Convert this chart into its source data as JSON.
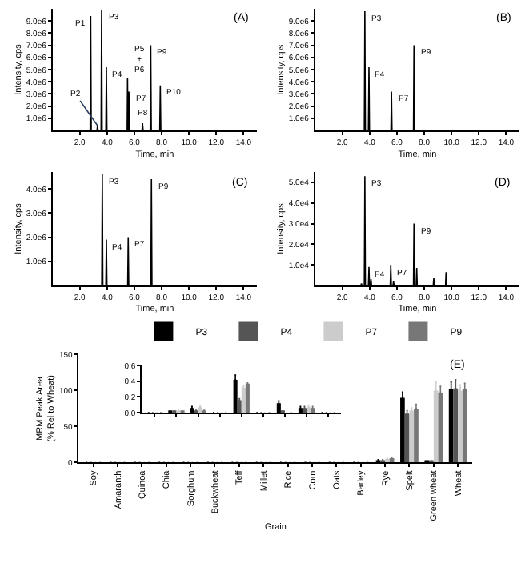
{
  "chart_data": [
    {
      "type": "line",
      "title": "(A)",
      "xlabel": "Time, min",
      "ylabel": "Intensity, cps",
      "marker": "none",
      "xlim": [
        0,
        15
      ],
      "xticks": [
        {
          "value": 2,
          "label": "2.0"
        },
        {
          "value": 4,
          "label": "4.0"
        },
        {
          "value": 6,
          "label": "6.0"
        },
        {
          "value": 8,
          "label": "8.0"
        },
        {
          "value": 10,
          "label": "10.0"
        },
        {
          "value": 12,
          "label": "12.0"
        },
        {
          "value": 14,
          "label": "14.0"
        }
      ],
      "ylim": [
        0,
        10000000
      ],
      "yticks": [
        {
          "value": 1000000,
          "label": "1.0e6"
        },
        {
          "value": 2000000,
          "label": "2.0e6"
        },
        {
          "value": 3000000,
          "label": "3.0e6"
        },
        {
          "value": 4000000,
          "label": "4.0e6"
        },
        {
          "value": 5000000,
          "label": "5.0e6"
        },
        {
          "value": 6000000,
          "label": "6.0e6"
        },
        {
          "value": 7000000,
          "label": "7.0e6"
        },
        {
          "value": 8000000,
          "label": "8.0e6"
        },
        {
          "value": 9000000,
          "label": "9.0e6"
        }
      ],
      "series": [
        {
          "color": "#000000",
          "x": [
            0,
            2.76,
            2.8,
            2.84,
            3.26,
            3.3,
            3.34,
            3.56,
            3.6,
            3.64,
            3.91,
            3.95,
            3.99,
            5.47,
            5.5,
            5.53,
            5.57,
            5.6,
            5.63,
            6.56,
            6.6,
            6.64,
            7.16,
            7.2,
            7.24,
            7.86,
            7.9,
            7.94,
            15
          ],
          "values": [
            0,
            0,
            9400000,
            0,
            0,
            400000,
            0,
            0,
            9900000,
            0,
            0,
            5200000,
            0,
            0,
            4300000,
            0,
            0,
            3200000,
            0,
            0,
            600000,
            0,
            0,
            7000000,
            0,
            0,
            3700000,
            0,
            0
          ]
        }
      ],
      "annotations": [
        {
          "text": "P1",
          "x": 2.8,
          "y": 9400000
        },
        {
          "text": "P2",
          "x": 3.3,
          "y": 400000
        },
        {
          "text": "P3",
          "x": 3.6,
          "y": 9900000
        },
        {
          "text": "P4",
          "x": 3.95,
          "y": 5200000
        },
        {
          "text": "P5\n+\nP6",
          "x": 5.5,
          "y": 4300000
        },
        {
          "text": "P7",
          "x": 5.6,
          "y": 3200000
        },
        {
          "text": "P8",
          "x": 6.6,
          "y": 600000
        },
        {
          "text": "P9",
          "x": 7.2,
          "y": 7000000
        },
        {
          "text": "P10",
          "x": 7.9,
          "y": 3700000
        }
      ]
    },
    {
      "type": "line",
      "title": "(B)",
      "xlabel": "Time, min",
      "ylabel": "Intensity, cps",
      "marker": "none",
      "xlim": [
        0,
        15
      ],
      "xticks": [
        {
          "value": 2,
          "label": "2.0"
        },
        {
          "value": 4,
          "label": "4.0"
        },
        {
          "value": 6,
          "label": "6.0"
        },
        {
          "value": 8,
          "label": "8.0"
        },
        {
          "value": 10,
          "label": "10.0"
        },
        {
          "value": 12,
          "label": "12.0"
        },
        {
          "value": 14,
          "label": "14.0"
        }
      ],
      "ylim": [
        0,
        10000000
      ],
      "yticks": [
        {
          "value": 1000000,
          "label": "1.0e6"
        },
        {
          "value": 2000000,
          "label": "2.0e6"
        },
        {
          "value": 3000000,
          "label": "3.0e6"
        },
        {
          "value": 4000000,
          "label": "4.0e6"
        },
        {
          "value": 5000000,
          "label": "5.0e6"
        },
        {
          "value": 6000000,
          "label": "6.0e6"
        },
        {
          "value": 7000000,
          "label": "7.0e6"
        },
        {
          "value": 8000000,
          "label": "8.0e6"
        },
        {
          "value": 9000000,
          "label": "9.0e6"
        }
      ],
      "series": [
        {
          "color": "#000000",
          "x": [
            0,
            3.61,
            3.65,
            3.69,
            3.91,
            3.95,
            3.99,
            5.56,
            5.6,
            5.64,
            7.21,
            7.25,
            7.29,
            15
          ],
          "values": [
            0,
            0,
            9800000,
            0,
            0,
            5200000,
            0,
            0,
            3200000,
            0,
            0,
            7000000,
            0,
            0
          ]
        }
      ],
      "annotations": [
        {
          "text": "P3",
          "x": 3.65,
          "y": 9800000
        },
        {
          "text": "P4",
          "x": 3.95,
          "y": 5200000
        },
        {
          "text": "P7",
          "x": 5.6,
          "y": 3200000
        },
        {
          "text": "P9",
          "x": 7.25,
          "y": 7000000
        }
      ]
    },
    {
      "type": "line",
      "title": "(C)",
      "xlabel": "Time, min",
      "ylabel": "Intensity, cps",
      "marker": "none",
      "xlim": [
        0,
        15
      ],
      "xticks": [
        {
          "value": 2,
          "label": "2.0"
        },
        {
          "value": 4,
          "label": "4.0"
        },
        {
          "value": 6,
          "label": "6.0"
        },
        {
          "value": 8,
          "label": "8.0"
        },
        {
          "value": 10,
          "label": "10.0"
        },
        {
          "value": 12,
          "label": "12.0"
        },
        {
          "value": 14,
          "label": "14.0"
        }
      ],
      "ylim": [
        0,
        4700000
      ],
      "yticks": [
        {
          "value": 1000000,
          "label": "1.0e6"
        },
        {
          "value": 2000000,
          "label": "2.0e6"
        },
        {
          "value": 3000000,
          "label": "3.0e6"
        },
        {
          "value": 4000000,
          "label": "4.0e6"
        }
      ],
      "series": [
        {
          "color": "#000000",
          "x": [
            0,
            3.61,
            3.65,
            3.69,
            3.91,
            3.95,
            3.99,
            5.51,
            5.55,
            5.59,
            7.21,
            7.25,
            7.29,
            15
          ],
          "values": [
            0,
            0,
            4600000,
            0,
            0,
            1900000,
            0,
            0,
            2000000,
            0,
            0,
            4400000,
            0,
            0
          ]
        }
      ],
      "annotations": [
        {
          "text": "P3",
          "x": 3.65,
          "y": 4600000
        },
        {
          "text": "P4",
          "x": 3.95,
          "y": 1900000
        },
        {
          "text": "P7",
          "x": 5.55,
          "y": 2000000
        },
        {
          "text": "P9",
          "x": 7.25,
          "y": 4400000
        }
      ]
    },
    {
      "type": "line",
      "title": "(D)",
      "xlabel": "Time, min",
      "ylabel": "Intensity, cps",
      "marker": "none",
      "xlim": [
        0,
        15
      ],
      "xticks": [
        {
          "value": 2,
          "label": "2.0"
        },
        {
          "value": 4,
          "label": "4.0"
        },
        {
          "value": 6,
          "label": "6.0"
        },
        {
          "value": 8,
          "label": "8.0"
        },
        {
          "value": 10,
          "label": "10.0"
        },
        {
          "value": 12,
          "label": "12.0"
        },
        {
          "value": 14,
          "label": "14.0"
        }
      ],
      "ylim": [
        0,
        55000
      ],
      "yticks": [
        {
          "value": 10000,
          "label": "1.0e4"
        },
        {
          "value": 20000,
          "label": "2.0e4"
        },
        {
          "value": 30000,
          "label": "3.0e4"
        },
        {
          "value": 40000,
          "label": "4.0e4"
        },
        {
          "value": 50000,
          "label": "5.0e4"
        }
      ],
      "series": [
        {
          "color": "#000000",
          "x": [
            0,
            3.36,
            3.4,
            3.44,
            3.61,
            3.65,
            3.69,
            3.91,
            3.95,
            3.99,
            4.06,
            4.1,
            4.14,
            5.51,
            5.55,
            5.59,
            5.71,
            5.75,
            5.79,
            7.21,
            7.25,
            7.29,
            7.41,
            7.45,
            7.49,
            8.66,
            8.7,
            8.74,
            9.56,
            9.6,
            9.64,
            15
          ],
          "values": [
            0,
            0,
            1000,
            0,
            0,
            53000,
            0,
            0,
            9000,
            0,
            0,
            3000,
            0,
            0,
            10000,
            0,
            0,
            2000,
            0,
            0,
            30000,
            0,
            0,
            8500,
            0,
            0,
            3500,
            0,
            0,
            6500,
            0,
            0
          ]
        }
      ],
      "annotations": [
        {
          "text": "P3",
          "x": 3.65,
          "y": 53000
        },
        {
          "text": "P4",
          "x": 3.95,
          "y": 9000
        },
        {
          "text": "P7",
          "x": 5.55,
          "y": 10000
        },
        {
          "text": "P9",
          "x": 7.25,
          "y": 30000
        }
      ]
    },
    {
      "type": "bar",
      "title": "(E)",
      "xlabel": "Grain",
      "ylabel": "MRM Peak Area\n(% Rel to Wheat)",
      "legend": "top right",
      "ylim": [
        0,
        150
      ],
      "yticks": [
        0,
        50,
        100,
        150
      ],
      "categories": [
        "Soy",
        "Amaranth",
        "Quinoa",
        "Chia",
        "Sorghum",
        "Buckwheat",
        "Teff",
        "Millet",
        "Rice",
        "Corn",
        "Oats",
        "Barley",
        "Rye",
        "Spelt",
        "Green wheat",
        "Wheat"
      ],
      "series": [
        {
          "name": "P3",
          "color": "#000000",
          "values": [
            0,
            0,
            0,
            0,
            0,
            0,
            0,
            0,
            0,
            0,
            0,
            0,
            3,
            90,
            2,
            102
          ],
          "errors": [
            null,
            null,
            null,
            null,
            null,
            null,
            null,
            null,
            null,
            null,
            null,
            null,
            1,
            8,
            null,
            10
          ]
        },
        {
          "name": "P4",
          "color": "#555555",
          "values": [
            0,
            0,
            0,
            0,
            0,
            0,
            0,
            0,
            0,
            0,
            0,
            0,
            3,
            68,
            2,
            103
          ],
          "errors": [
            null,
            null,
            null,
            null,
            null,
            null,
            null,
            null,
            null,
            null,
            null,
            null,
            1,
            4,
            null,
            12
          ]
        },
        {
          "name": "P7",
          "color": "#cccccc",
          "values": [
            0,
            0,
            0,
            0,
            0,
            0,
            0,
            0,
            0,
            0,
            0,
            0,
            5,
            72,
            100,
            100
          ],
          "errors": [
            null,
            null,
            null,
            null,
            null,
            null,
            null,
            null,
            null,
            null,
            null,
            null,
            1,
            4,
            12,
            8
          ]
        },
        {
          "name": "P9",
          "color": "#777777",
          "values": [
            0,
            0,
            0,
            0,
            0,
            0,
            0,
            0,
            0,
            0,
            0,
            0,
            6,
            75,
            97,
            102
          ],
          "errors": [
            null,
            null,
            null,
            null,
            null,
            null,
            null,
            null,
            null,
            null,
            null,
            null,
            1,
            6,
            9,
            8
          ]
        }
      ]
    },
    {
      "type": "bar",
      "ylim": [
        0,
        0.6
      ],
      "yticks": [
        {
          "value": 0,
          "label": "0.0"
        },
        {
          "value": 0.2,
          "label": "0.2"
        },
        {
          "value": 0.4,
          "label": "0.4"
        },
        {
          "value": 0.6,
          "label": "0.6"
        }
      ],
      "categories": [
        null,
        null,
        null,
        null,
        null,
        null,
        null,
        null,
        null
      ],
      "series": [
        {
          "color": "#000000",
          "values": [
            0,
            0.01,
            0.06,
            0,
            0.42,
            0,
            0.12,
            0.06,
            0
          ],
          "errors": [
            null,
            null,
            0.02,
            null,
            0.06,
            null,
            0.03,
            0.02,
            null
          ]
        },
        {
          "color": "#555555",
          "values": [
            0,
            0.02,
            0.03,
            0,
            0.16,
            0,
            0.02,
            0.06,
            0
          ],
          "errors": [
            null,
            null,
            null,
            null,
            0.02,
            null,
            null,
            0.02,
            null
          ]
        },
        {
          "color": "#cccccc",
          "values": [
            0,
            0.03,
            0.07,
            0,
            0.32,
            0,
            0,
            0.07,
            0
          ],
          "errors": [
            null,
            null,
            0.02,
            null,
            0.02,
            null,
            null,
            0.02,
            null
          ]
        },
        {
          "color": "#777777",
          "values": [
            0,
            0.02,
            0.03,
            0,
            0.37,
            0,
            0,
            0.06,
            0
          ],
          "errors": [
            null,
            null,
            null,
            null,
            0.01,
            null,
            null,
            0.02,
            null
          ]
        }
      ]
    }
  ]
}
